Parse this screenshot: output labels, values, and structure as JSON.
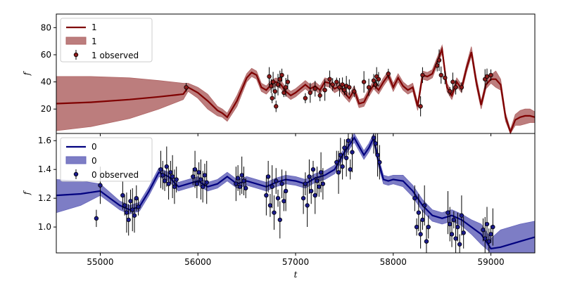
{
  "chart_data": [
    {
      "type": "line",
      "panel": "top",
      "xlabel": "",
      "ylabel": "f",
      "xlim": [
        54550,
        59450
      ],
      "ylim": [
        2,
        90
      ],
      "yticks": [
        20,
        40,
        60,
        80
      ],
      "grid": false,
      "legend_placement": "top-left",
      "legend": [
        "1",
        "1",
        "1 observed"
      ],
      "colors": {
        "line": "#7f0000",
        "band": "#b06666",
        "point": "#8b1a1a"
      },
      "series": [
        {
          "kind": "mean",
          "x": [
            54550,
            54900,
            55300,
            55600,
            55850,
            55900,
            56000,
            56100,
            56200,
            56250,
            56300,
            56400,
            56500,
            56550,
            56600,
            56650,
            56700,
            56750,
            56800,
            56850,
            56900,
            56950,
            57000,
            57050,
            57100,
            57150,
            57200,
            57250,
            57300,
            57350,
            57400,
            57450,
            57500,
            57550,
            57600,
            57650,
            57700,
            57750,
            57800,
            57850,
            57900,
            57950,
            58000,
            58050,
            58100,
            58150,
            58200,
            58250,
            58300,
            58350,
            58400,
            58450,
            58500,
            58550,
            58600,
            58650,
            58700,
            58750,
            58800,
            58850,
            58900,
            58950,
            59000,
            59050,
            59100,
            59150,
            59200,
            59250,
            59300,
            59350,
            59400,
            59450
          ],
          "y": [
            24,
            25,
            27,
            29,
            31,
            36,
            32,
            26,
            19,
            17,
            14,
            26,
            43,
            47,
            45,
            36,
            34,
            38,
            40,
            38,
            33,
            30,
            32,
            35,
            38,
            35,
            37,
            34,
            40,
            39,
            35,
            37,
            32,
            28,
            34,
            24,
            25,
            32,
            38,
            34,
            40,
            45,
            36,
            43,
            37,
            34,
            36,
            22,
            45,
            44,
            46,
            55,
            64,
            36,
            30,
            40,
            35,
            50,
            62,
            40,
            23,
            38,
            42,
            42,
            38,
            14,
            3,
            12,
            14,
            15,
            15,
            14
          ]
        },
        {
          "kind": "band",
          "x": [
            54550,
            54900,
            55300,
            55600,
            55850,
            55900,
            56000,
            56100,
            56200,
            56250,
            56300,
            56400,
            56500,
            56550,
            56600,
            56650,
            56700,
            56750,
            56800,
            56850,
            56900,
            56950,
            57000,
            57050,
            57100,
            57150,
            57200,
            57250,
            57300,
            57350,
            57400,
            57450,
            57500,
            57550,
            57600,
            57650,
            57700,
            57750,
            57800,
            57850,
            57900,
            57950,
            58000,
            58050,
            58100,
            58150,
            58200,
            58250,
            58300,
            58350,
            58400,
            58450,
            58500,
            58550,
            58600,
            58650,
            58700,
            58750,
            58800,
            58850,
            58900,
            58950,
            59000,
            59050,
            59100,
            59150,
            59200,
            59250,
            59300,
            59350,
            59400,
            59450
          ],
          "lower": [
            4,
            7,
            13,
            20,
            27,
            33,
            28,
            20,
            15,
            14,
            11,
            22,
            40,
            44,
            42,
            33,
            31,
            35,
            37,
            35,
            30,
            27,
            29,
            32,
            35,
            32,
            34,
            31,
            37,
            36,
            32,
            34,
            29,
            25,
            31,
            21,
            22,
            29,
            35,
            31,
            37,
            42,
            33,
            40,
            34,
            31,
            33,
            19,
            42,
            41,
            43,
            52,
            61,
            33,
            27,
            37,
            32,
            47,
            59,
            37,
            20,
            35,
            39,
            36,
            34,
            11,
            2,
            8,
            8,
            9,
            10,
            10
          ],
          "upper": [
            44,
            44,
            43,
            41,
            39,
            39,
            36,
            31,
            22,
            20,
            17,
            30,
            46,
            50,
            48,
            39,
            37,
            41,
            43,
            41,
            36,
            33,
            35,
            38,
            41,
            38,
            40,
            37,
            43,
            42,
            38,
            40,
            35,
            31,
            37,
            27,
            28,
            35,
            41,
            37,
            43,
            48,
            39,
            46,
            40,
            37,
            39,
            25,
            48,
            47,
            49,
            58,
            67,
            39,
            33,
            43,
            38,
            53,
            66,
            44,
            26,
            41,
            45,
            48,
            42,
            17,
            5,
            16,
            19,
            20,
            20,
            18
          ]
        },
        {
          "kind": "observed",
          "x": [
            55880,
            56730,
            56750,
            56760,
            56770,
            56790,
            56800,
            56820,
            56840,
            56860,
            56880,
            56900,
            56920,
            57100,
            57150,
            57200,
            57250,
            57300,
            57350,
            57380,
            57420,
            57450,
            57480,
            57500,
            57520,
            57550,
            57600,
            57700,
            57750,
            57800,
            57820,
            57830,
            57850,
            57950,
            58280,
            58300,
            58450,
            58470,
            58490,
            58530,
            58580,
            58610,
            58640,
            58700,
            58940,
            58960,
            59000
          ],
          "y": [
            36,
            44,
            37,
            28,
            40,
            33,
            22,
            38,
            42,
            45,
            32,
            36,
            40,
            28,
            32,
            35,
            30,
            34,
            42,
            38,
            40,
            36,
            38,
            34,
            37,
            36,
            33,
            40,
            36,
            41,
            38,
            44,
            42,
            46,
            22,
            45,
            52,
            56,
            45,
            43,
            33,
            40,
            36,
            36,
            42,
            44,
            45
          ]
        }
      ]
    },
    {
      "type": "line",
      "panel": "bottom",
      "xlabel": "t",
      "ylabel": "f",
      "xlim": [
        54550,
        59450
      ],
      "ylim": [
        0.82,
        1.65
      ],
      "yticks": [
        1.0,
        1.2,
        1.4,
        1.6
      ],
      "xticks": [
        55000,
        56000,
        57000,
        58000,
        59000
      ],
      "grid": false,
      "legend_placement": "top-left",
      "legend": [
        "0",
        "0",
        "0 observed"
      ],
      "colors": {
        "line": "#00007f",
        "band": "#6666bb",
        "point": "#1a1a8b"
      },
      "series": [
        {
          "kind": "mean",
          "x": [
            54550,
            54800,
            55000,
            55100,
            55200,
            55300,
            55400,
            55500,
            55600,
            55700,
            55800,
            55900,
            56000,
            56100,
            56200,
            56300,
            56400,
            56500,
            56600,
            56700,
            56800,
            56900,
            57000,
            57100,
            57200,
            57300,
            57400,
            57500,
            57600,
            57700,
            57750,
            57800,
            57850,
            57900,
            57950,
            58000,
            58100,
            58200,
            58300,
            58400,
            58500,
            58600,
            58700,
            58800,
            58900,
            59000,
            59100,
            59200,
            59300,
            59450
          ],
          "y": [
            1.22,
            1.23,
            1.25,
            1.2,
            1.15,
            1.12,
            1.14,
            1.25,
            1.38,
            1.35,
            1.28,
            1.3,
            1.32,
            1.28,
            1.3,
            1.35,
            1.3,
            1.32,
            1.3,
            1.28,
            1.31,
            1.33,
            1.32,
            1.3,
            1.34,
            1.36,
            1.4,
            1.52,
            1.62,
            1.5,
            1.55,
            1.62,
            1.45,
            1.33,
            1.32,
            1.33,
            1.32,
            1.25,
            1.15,
            1.08,
            1.06,
            1.08,
            1.05,
            1.0,
            0.95,
            0.85,
            0.86,
            0.88,
            0.9,
            0.93
          ]
        },
        {
          "kind": "band",
          "x": [
            54550,
            54800,
            55000,
            55100,
            55200,
            55300,
            55400,
            55500,
            55600,
            55700,
            55800,
            55900,
            56000,
            56100,
            56200,
            56300,
            56400,
            56500,
            56600,
            56700,
            56800,
            56900,
            57000,
            57100,
            57200,
            57300,
            57400,
            57500,
            57600,
            57700,
            57750,
            57800,
            57850,
            57900,
            57950,
            58000,
            58100,
            58200,
            58300,
            58400,
            58500,
            58600,
            58700,
            58800,
            58900,
            59000,
            59100,
            59200,
            59300,
            59450
          ],
          "lower": [
            1.1,
            1.15,
            1.22,
            1.17,
            1.12,
            1.09,
            1.11,
            1.22,
            1.35,
            1.32,
            1.25,
            1.27,
            1.29,
            1.25,
            1.27,
            1.32,
            1.27,
            1.29,
            1.27,
            1.25,
            1.28,
            1.3,
            1.29,
            1.27,
            1.31,
            1.33,
            1.37,
            1.49,
            1.59,
            1.47,
            1.52,
            1.59,
            1.42,
            1.3,
            1.29,
            1.3,
            1.28,
            1.21,
            1.11,
            1.04,
            1.02,
            1.04,
            1.01,
            0.95,
            0.88,
            0.78,
            0.72,
            0.72,
            0.76,
            0.82
          ],
          "upper": [
            1.33,
            1.32,
            1.3,
            1.24,
            1.18,
            1.15,
            1.17,
            1.28,
            1.41,
            1.38,
            1.31,
            1.33,
            1.35,
            1.31,
            1.33,
            1.38,
            1.33,
            1.35,
            1.33,
            1.31,
            1.34,
            1.36,
            1.35,
            1.33,
            1.37,
            1.39,
            1.43,
            1.55,
            1.65,
            1.53,
            1.58,
            1.65,
            1.48,
            1.36,
            1.35,
            1.36,
            1.36,
            1.29,
            1.19,
            1.12,
            1.1,
            1.12,
            1.09,
            1.05,
            1.02,
            0.92,
            0.98,
            1.0,
            1.02,
            1.04
          ]
        },
        {
          "kind": "observed",
          "x": [
            54960,
            55000,
            55230,
            55250,
            55270,
            55290,
            55310,
            55330,
            55350,
            55370,
            55390,
            55620,
            55640,
            55660,
            55680,
            55700,
            55720,
            55740,
            55760,
            55780,
            55950,
            55970,
            55990,
            56010,
            56030,
            56050,
            56070,
            56090,
            56390,
            56410,
            56430,
            56450,
            56470,
            56490,
            56700,
            56720,
            56740,
            56760,
            56780,
            56800,
            56820,
            56840,
            56860,
            56880,
            56900,
            57080,
            57100,
            57120,
            57140,
            57160,
            57180,
            57200,
            57220,
            57240,
            57260,
            57280,
            57420,
            57440,
            57460,
            57480,
            57500,
            57520,
            57540,
            57560,
            57580,
            57800,
            57820,
            57840,
            57860,
            58220,
            58240,
            58260,
            58280,
            58300,
            58320,
            58340,
            58360,
            58560,
            58580,
            58600,
            58620,
            58640,
            58660,
            58680,
            58700,
            58720,
            58920,
            58940,
            58960,
            58980,
            59000,
            59020
          ],
          "y": [
            1.06,
            1.29,
            1.22,
            1.15,
            1.1,
            1.05,
            1.18,
            1.12,
            1.08,
            1.2,
            1.14,
            1.4,
            1.36,
            1.32,
            1.42,
            1.3,
            1.38,
            1.35,
            1.28,
            1.33,
            1.35,
            1.4,
            1.3,
            1.38,
            1.33,
            1.28,
            1.36,
            1.31,
            1.3,
            1.34,
            1.28,
            1.36,
            1.32,
            1.27,
            1.22,
            1.35,
            1.15,
            1.28,
            1.1,
            1.32,
            1.2,
            1.05,
            1.3,
            1.18,
            1.25,
            1.2,
            1.3,
            1.15,
            1.35,
            1.25,
            1.4,
            1.22,
            1.32,
            1.28,
            1.38,
            1.3,
            1.45,
            1.38,
            1.5,
            1.42,
            1.55,
            1.48,
            1.6,
            1.4,
            1.52,
            1.62,
            1.58,
            1.5,
            1.45,
            1.2,
            1.0,
            1.1,
            0.95,
            1.05,
            1.15,
            0.9,
            1.0,
            1.1,
            1.02,
            0.95,
            1.05,
            0.92,
            1.0,
            0.88,
            1.08,
            0.96,
            0.98,
            0.92,
            1.02,
            0.9,
            0.95,
            1.0
          ]
        }
      ]
    }
  ]
}
